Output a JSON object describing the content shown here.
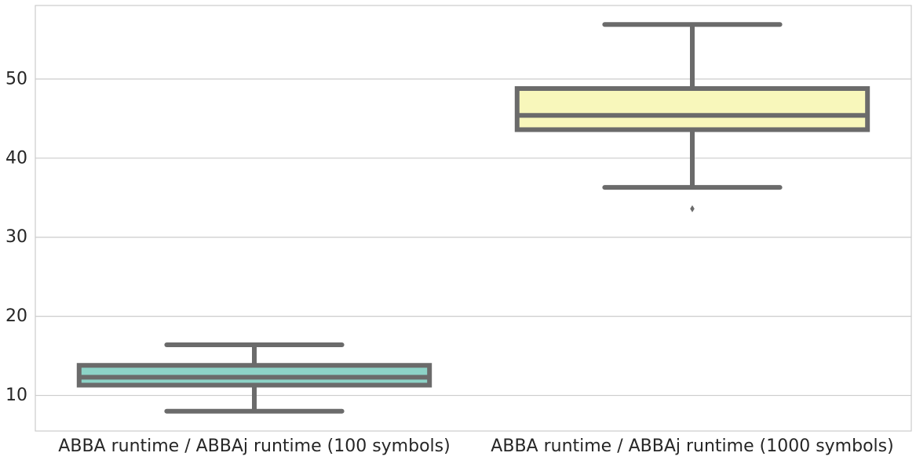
{
  "chart_data": {
    "type": "box",
    "title": "",
    "xlabel": "",
    "ylabel": "",
    "ylim": [
      5.5,
      59.3
    ],
    "yticks": [
      10,
      20,
      30,
      40,
      50
    ],
    "grid": "horizontal",
    "line_color": "#6b6b6b",
    "categories": [
      "ABBA runtime / ABBAj runtime (100 symbols)",
      "ABBA runtime / ABBAj runtime (1000 symbols)"
    ],
    "boxes": [
      {
        "category": "ABBA runtime / ABBAj runtime (100 symbols)",
        "color": "#8dd3c7",
        "whisker_low": 8.0,
        "q1": 11.3,
        "median": 12.3,
        "q3": 13.8,
        "whisker_high": 16.4,
        "outliers": []
      },
      {
        "category": "ABBA runtime / ABBAj runtime (1000 symbols)",
        "color": "#f8f7bb",
        "whisker_low": 36.3,
        "q1": 43.6,
        "median": 45.4,
        "q3": 48.8,
        "whisker_high": 56.9,
        "outliers": [
          33.6
        ]
      }
    ]
  }
}
